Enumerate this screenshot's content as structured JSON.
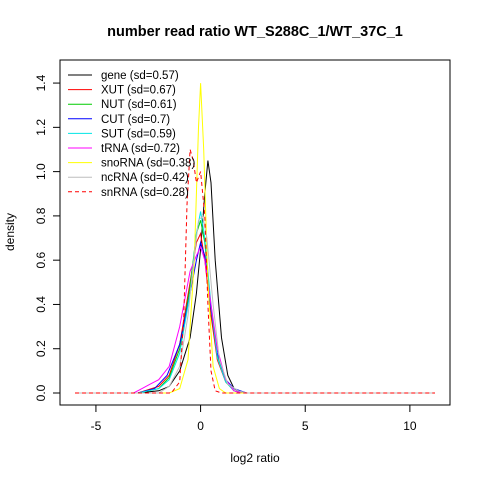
{
  "chart_data": {
    "type": "line",
    "title": "number read ratio WT_S288C_1/WT_37C_1",
    "xlabel": "log2 ratio",
    "ylabel": "density",
    "xlim": [
      -6,
      11.2
    ],
    "ylim": [
      0,
      1.45
    ],
    "x_ticks": [
      -5,
      0,
      5,
      10
    ],
    "y_ticks": [
      0.0,
      0.2,
      0.4,
      0.6,
      0.8,
      1.0,
      1.2,
      1.4
    ],
    "x_tick_labels": [
      "-5",
      "0",
      "5",
      "10"
    ],
    "y_tick_labels": [
      "0.0",
      "0.2",
      "0.4",
      "0.6",
      "0.8",
      "1.0",
      "1.2",
      "1.4"
    ],
    "legend_position": "top-left",
    "series": [
      {
        "name": "gene (sd=0.57)",
        "color": "#000000",
        "dashed": false,
        "points": [
          [
            -6,
            0
          ],
          [
            -3,
            0
          ],
          [
            -2,
            0.01
          ],
          [
            -1.5,
            0.03
          ],
          [
            -1,
            0.1
          ],
          [
            -0.5,
            0.25
          ],
          [
            -0.2,
            0.45
          ],
          [
            0,
            0.65
          ],
          [
            0.2,
            0.9
          ],
          [
            0.35,
            1.05
          ],
          [
            0.5,
            0.95
          ],
          [
            0.7,
            0.6
          ],
          [
            1,
            0.25
          ],
          [
            1.3,
            0.08
          ],
          [
            1.6,
            0.02
          ],
          [
            2,
            0
          ],
          [
            11.2,
            0
          ]
        ]
      },
      {
        "name": "XUT (sd=0.67)",
        "color": "#ff0000",
        "dashed": false,
        "points": [
          [
            -6,
            0
          ],
          [
            -3,
            0
          ],
          [
            -2,
            0.03
          ],
          [
            -1.5,
            0.08
          ],
          [
            -1,
            0.22
          ],
          [
            -0.5,
            0.5
          ],
          [
            -0.2,
            0.68
          ],
          [
            0,
            0.72
          ],
          [
            0.2,
            0.6
          ],
          [
            0.5,
            0.35
          ],
          [
            0.8,
            0.15
          ],
          [
            1.2,
            0.05
          ],
          [
            1.6,
            0.01
          ],
          [
            2,
            0
          ],
          [
            11.2,
            0
          ]
        ]
      },
      {
        "name": "NUT (sd=0.61)",
        "color": "#00cc00",
        "dashed": false,
        "points": [
          [
            -6,
            0
          ],
          [
            -3,
            0
          ],
          [
            -2,
            0.02
          ],
          [
            -1.5,
            0.07
          ],
          [
            -1,
            0.2
          ],
          [
            -0.5,
            0.48
          ],
          [
            -0.2,
            0.72
          ],
          [
            0,
            0.78
          ],
          [
            0.2,
            0.68
          ],
          [
            0.5,
            0.38
          ],
          [
            0.8,
            0.17
          ],
          [
            1.2,
            0.05
          ],
          [
            1.6,
            0.01
          ],
          [
            2,
            0
          ],
          [
            11.2,
            0
          ]
        ]
      },
      {
        "name": "CUT (sd=0.7)",
        "color": "#0000ff",
        "dashed": false,
        "points": [
          [
            -6,
            0
          ],
          [
            -3,
            0
          ],
          [
            -2.2,
            0.02
          ],
          [
            -1.6,
            0.08
          ],
          [
            -1,
            0.22
          ],
          [
            -0.5,
            0.45
          ],
          [
            -0.2,
            0.6
          ],
          [
            0,
            0.68
          ],
          [
            0.2,
            0.62
          ],
          [
            0.5,
            0.38
          ],
          [
            0.8,
            0.18
          ],
          [
            1.2,
            0.06
          ],
          [
            1.6,
            0.02
          ],
          [
            2.2,
            0
          ],
          [
            11.2,
            0
          ]
        ]
      },
      {
        "name": "SUT (sd=0.59)",
        "color": "#00e5e5",
        "dashed": false,
        "points": [
          [
            -6,
            0
          ],
          [
            -3,
            0
          ],
          [
            -2,
            0.02
          ],
          [
            -1.5,
            0.06
          ],
          [
            -1,
            0.18
          ],
          [
            -0.5,
            0.45
          ],
          [
            -0.2,
            0.72
          ],
          [
            0,
            0.82
          ],
          [
            0.2,
            0.7
          ],
          [
            0.5,
            0.4
          ],
          [
            0.8,
            0.16
          ],
          [
            1.2,
            0.05
          ],
          [
            1.6,
            0.01
          ],
          [
            2,
            0
          ],
          [
            11.2,
            0
          ]
        ]
      },
      {
        "name": "tRNA (sd=0.72)",
        "color": "#ff00ff",
        "dashed": false,
        "points": [
          [
            -6,
            0
          ],
          [
            -3.2,
            0
          ],
          [
            -2.8,
            0.02
          ],
          [
            -2.4,
            0.04
          ],
          [
            -2,
            0.06
          ],
          [
            -1.5,
            0.12
          ],
          [
            -1,
            0.3
          ],
          [
            -0.5,
            0.55
          ],
          [
            -0.2,
            0.62
          ],
          [
            0,
            0.66
          ],
          [
            0.2,
            0.6
          ],
          [
            0.5,
            0.4
          ],
          [
            0.8,
            0.2
          ],
          [
            1.2,
            0.06
          ],
          [
            1.6,
            0.01
          ],
          [
            2,
            0
          ],
          [
            11.2,
            0
          ]
        ]
      },
      {
        "name": "snoRNA (sd=0.38)",
        "color": "#ffff00",
        "dashed": false,
        "points": [
          [
            -6,
            0
          ],
          [
            -1.5,
            0
          ],
          [
            -1,
            0.02
          ],
          [
            -0.6,
            0.15
          ],
          [
            -0.3,
            0.6
          ],
          [
            -0.1,
            1.2
          ],
          [
            0,
            1.4
          ],
          [
            0.15,
            1.1
          ],
          [
            0.35,
            0.5
          ],
          [
            0.6,
            0.12
          ],
          [
            0.9,
            0.02
          ],
          [
            1.2,
            0
          ],
          [
            11.2,
            0
          ]
        ]
      },
      {
        "name": "ncRNA (sd=0.42)",
        "color": "#bebebe",
        "dashed": false,
        "points": [
          [
            -6,
            0
          ],
          [
            -2,
            0
          ],
          [
            -1.5,
            0.03
          ],
          [
            -1,
            0.12
          ],
          [
            -0.6,
            0.35
          ],
          [
            -0.3,
            0.62
          ],
          [
            -0.1,
            0.78
          ],
          [
            0.1,
            0.8
          ],
          [
            0.3,
            0.7
          ],
          [
            0.6,
            0.4
          ],
          [
            0.9,
            0.15
          ],
          [
            1.3,
            0.04
          ],
          [
            1.8,
            0.01
          ],
          [
            2.2,
            0
          ],
          [
            11.2,
            0
          ]
        ]
      },
      {
        "name": "snRNA (sd=0.28)",
        "color": "#ff0000",
        "dashed": true,
        "points": [
          [
            -6,
            0
          ],
          [
            -1.4,
            0
          ],
          [
            -1.0,
            0.05
          ],
          [
            -0.8,
            0.35
          ],
          [
            -0.65,
            0.85
          ],
          [
            -0.5,
            1.1
          ],
          [
            -0.35,
            1.05
          ],
          [
            -0.2,
            0.95
          ],
          [
            0,
            1.0
          ],
          [
            0.2,
            0.8
          ],
          [
            0.35,
            0.4
          ],
          [
            0.5,
            0.1
          ],
          [
            0.7,
            0.01
          ],
          [
            1,
            0
          ],
          [
            11.2,
            0
          ]
        ]
      }
    ]
  }
}
